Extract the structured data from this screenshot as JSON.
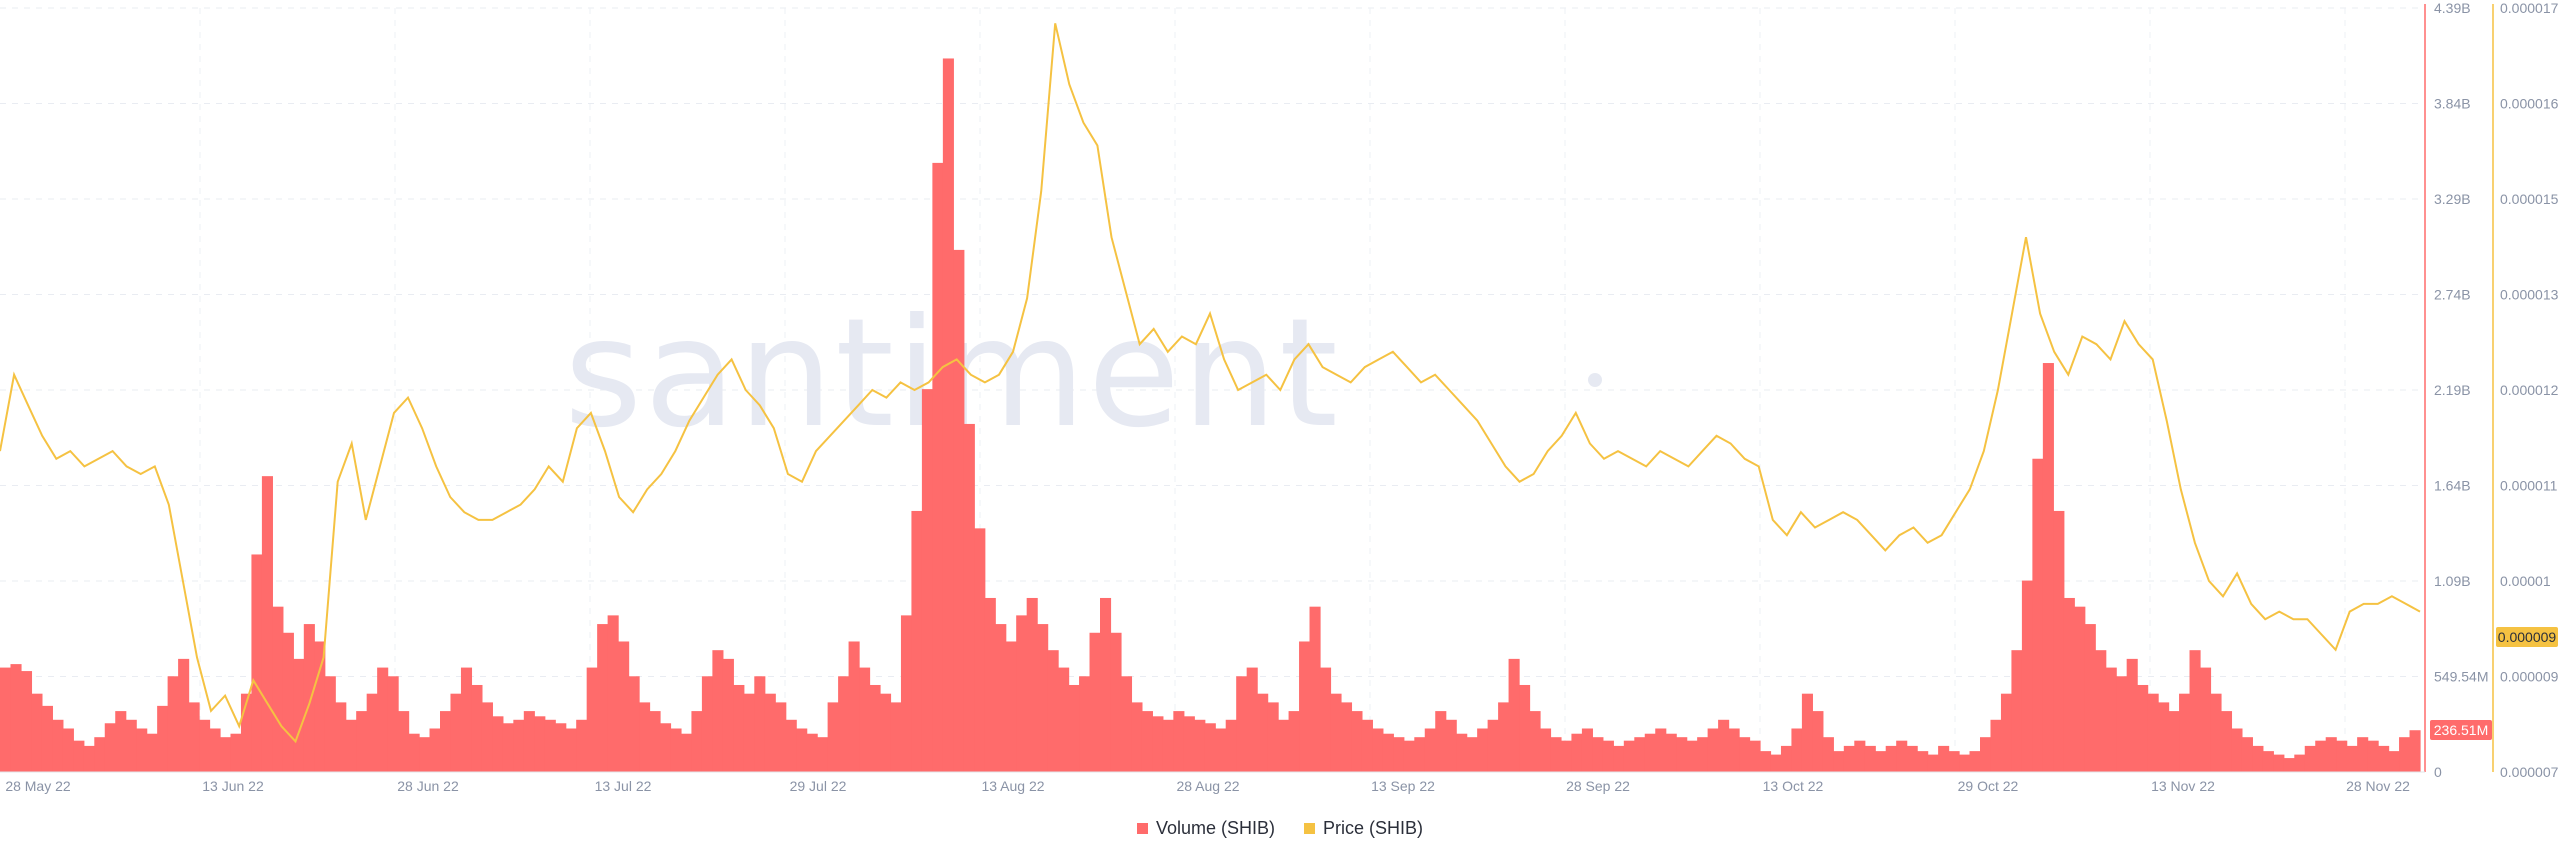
{
  "watermark": "santiment",
  "legend": [
    {
      "label": "Volume (SHIB)",
      "color": "#ff6b6b"
    },
    {
      "label": "Price (SHIB)",
      "color": "#f5c242"
    }
  ],
  "badges": {
    "volume": "236.51M",
    "price": "0.000009"
  },
  "chart_data": {
    "type": "bar+line",
    "x_ticks": [
      "28 May 22",
      "13 Jun 22",
      "28 Jun 22",
      "13 Jul 22",
      "29 Jul 22",
      "13 Aug 22",
      "28 Aug 22",
      "13 Sep 22",
      "28 Sep 22",
      "13 Oct 22",
      "29 Oct 22",
      "13 Nov 22",
      "28 Nov 22"
    ],
    "volume_axis": {
      "ticks": [
        "4.39B",
        "3.84B",
        "3.29B",
        "2.74B",
        "2.19B",
        "1.64B",
        "1.09B",
        "549.54M",
        "0"
      ],
      "ylim": [
        0,
        4390000000
      ]
    },
    "price_axis": {
      "ticks": [
        "0.000017",
        "0.000016",
        "0.000015",
        "0.000013",
        "0.000012",
        "0.000011",
        "0.00001",
        "0.000009",
        "0.000007"
      ],
      "ylim": [
        7e-06,
        1.7e-05
      ]
    },
    "series": [
      {
        "name": "Volume (SHIB)",
        "kind": "bar",
        "color": "#ff6b6b",
        "values_approx_billions": [
          0.6,
          0.62,
          0.58,
          0.45,
          0.38,
          0.3,
          0.25,
          0.18,
          0.15,
          0.2,
          0.28,
          0.35,
          0.3,
          0.25,
          0.22,
          0.38,
          0.55,
          0.65,
          0.4,
          0.3,
          0.25,
          0.2,
          0.22,
          0.45,
          1.25,
          1.7,
          0.95,
          0.8,
          0.65,
          0.85,
          0.75,
          0.55,
          0.4,
          0.3,
          0.35,
          0.45,
          0.6,
          0.55,
          0.35,
          0.22,
          0.2,
          0.25,
          0.35,
          0.45,
          0.6,
          0.5,
          0.4,
          0.32,
          0.28,
          0.3,
          0.35,
          0.32,
          0.3,
          0.28,
          0.25,
          0.3,
          0.6,
          0.85,
          0.9,
          0.75,
          0.55,
          0.4,
          0.35,
          0.28,
          0.25,
          0.22,
          0.35,
          0.55,
          0.7,
          0.65,
          0.5,
          0.45,
          0.55,
          0.45,
          0.4,
          0.3,
          0.25,
          0.22,
          0.2,
          0.4,
          0.55,
          0.75,
          0.6,
          0.5,
          0.45,
          0.4,
          0.9,
          1.5,
          2.2,
          3.5,
          4.1,
          3.0,
          2.0,
          1.4,
          1.0,
          0.85,
          0.75,
          0.9,
          1.0,
          0.85,
          0.7,
          0.6,
          0.5,
          0.55,
          0.8,
          1.0,
          0.8,
          0.55,
          0.4,
          0.35,
          0.32,
          0.3,
          0.35,
          0.32,
          0.3,
          0.28,
          0.25,
          0.3,
          0.55,
          0.6,
          0.45,
          0.4,
          0.3,
          0.35,
          0.75,
          0.95,
          0.6,
          0.45,
          0.4,
          0.35,
          0.3,
          0.25,
          0.22,
          0.2,
          0.18,
          0.2,
          0.25,
          0.35,
          0.3,
          0.22,
          0.2,
          0.25,
          0.3,
          0.4,
          0.65,
          0.5,
          0.35,
          0.25,
          0.2,
          0.18,
          0.22,
          0.25,
          0.2,
          0.18,
          0.15,
          0.18,
          0.2,
          0.22,
          0.25,
          0.22,
          0.2,
          0.18,
          0.2,
          0.25,
          0.3,
          0.25,
          0.2,
          0.18,
          0.12,
          0.1,
          0.15,
          0.25,
          0.45,
          0.35,
          0.2,
          0.12,
          0.15,
          0.18,
          0.15,
          0.12,
          0.15,
          0.18,
          0.15,
          0.12,
          0.1,
          0.15,
          0.12,
          0.1,
          0.12,
          0.2,
          0.3,
          0.45,
          0.7,
          1.1,
          1.8,
          2.35,
          1.5,
          1.0,
          0.95,
          0.85,
          0.7,
          0.6,
          0.55,
          0.65,
          0.5,
          0.45,
          0.4,
          0.35,
          0.45,
          0.7,
          0.6,
          0.45,
          0.35,
          0.25,
          0.2,
          0.15,
          0.12,
          0.1,
          0.08,
          0.1,
          0.15,
          0.18,
          0.2,
          0.18,
          0.15,
          0.2,
          0.18,
          0.15,
          0.12,
          0.2,
          0.24
        ]
      },
      {
        "name": "Price (SHIB)",
        "kind": "line",
        "color": "#f5c242",
        "values_approx": [
          1.12e-05,
          1.22e-05,
          1.18e-05,
          1.14e-05,
          1.11e-05,
          1.12e-05,
          1.1e-05,
          1.11e-05,
          1.12e-05,
          1.1e-05,
          1.09e-05,
          1.1e-05,
          1.05e-05,
          9.5e-06,
          8.5e-06,
          7.8e-06,
          8e-06,
          7.6e-06,
          8.2e-06,
          7.9e-06,
          7.6e-06,
          7.4e-06,
          7.9e-06,
          8.5e-06,
          1.08e-05,
          1.13e-05,
          1.03e-05,
          1.1e-05,
          1.17e-05,
          1.19e-05,
          1.15e-05,
          1.1e-05,
          1.06e-05,
          1.04e-05,
          1.03e-05,
          1.03e-05,
          1.04e-05,
          1.05e-05,
          1.07e-05,
          1.1e-05,
          1.08e-05,
          1.15e-05,
          1.17e-05,
          1.12e-05,
          1.06e-05,
          1.04e-05,
          1.07e-05,
          1.09e-05,
          1.12e-05,
          1.16e-05,
          1.19e-05,
          1.22e-05,
          1.24e-05,
          1.2e-05,
          1.18e-05,
          1.15e-05,
          1.09e-05,
          1.08e-05,
          1.12e-05,
          1.14e-05,
          1.16e-05,
          1.18e-05,
          1.2e-05,
          1.19e-05,
          1.21e-05,
          1.2e-05,
          1.21e-05,
          1.23e-05,
          1.24e-05,
          1.22e-05,
          1.21e-05,
          1.22e-05,
          1.25e-05,
          1.32e-05,
          1.46e-05,
          1.68e-05,
          1.6e-05,
          1.55e-05,
          1.52e-05,
          1.4e-05,
          1.33e-05,
          1.26e-05,
          1.28e-05,
          1.25e-05,
          1.27e-05,
          1.26e-05,
          1.3e-05,
          1.24e-05,
          1.2e-05,
          1.21e-05,
          1.22e-05,
          1.2e-05,
          1.24e-05,
          1.26e-05,
          1.23e-05,
          1.22e-05,
          1.21e-05,
          1.23e-05,
          1.24e-05,
          1.25e-05,
          1.23e-05,
          1.21e-05,
          1.22e-05,
          1.2e-05,
          1.18e-05,
          1.16e-05,
          1.13e-05,
          1.1e-05,
          1.08e-05,
          1.09e-05,
          1.12e-05,
          1.14e-05,
          1.17e-05,
          1.13e-05,
          1.11e-05,
          1.12e-05,
          1.11e-05,
          1.1e-05,
          1.12e-05,
          1.11e-05,
          1.1e-05,
          1.12e-05,
          1.14e-05,
          1.13e-05,
          1.11e-05,
          1.1e-05,
          1.03e-05,
          1.01e-05,
          1.04e-05,
          1.02e-05,
          1.03e-05,
          1.04e-05,
          1.03e-05,
          1.01e-05,
          9.9e-06,
          1.01e-05,
          1.02e-05,
          1e-05,
          1.01e-05,
          1.04e-05,
          1.07e-05,
          1.12e-05,
          1.2e-05,
          1.3e-05,
          1.4e-05,
          1.3e-05,
          1.25e-05,
          1.22e-05,
          1.27e-05,
          1.26e-05,
          1.24e-05,
          1.29e-05,
          1.26e-05,
          1.24e-05,
          1.16e-05,
          1.07e-05,
          1e-05,
          9.5e-06,
          9.3e-06,
          9.6e-06,
          9.2e-06,
          9e-06,
          9.1e-06,
          9e-06,
          9e-06,
          8.8e-06,
          8.6e-06,
          9.1e-06,
          9.2e-06,
          9.2e-06,
          9.3e-06,
          9.2e-06,
          9.1e-06
        ]
      }
    ]
  }
}
